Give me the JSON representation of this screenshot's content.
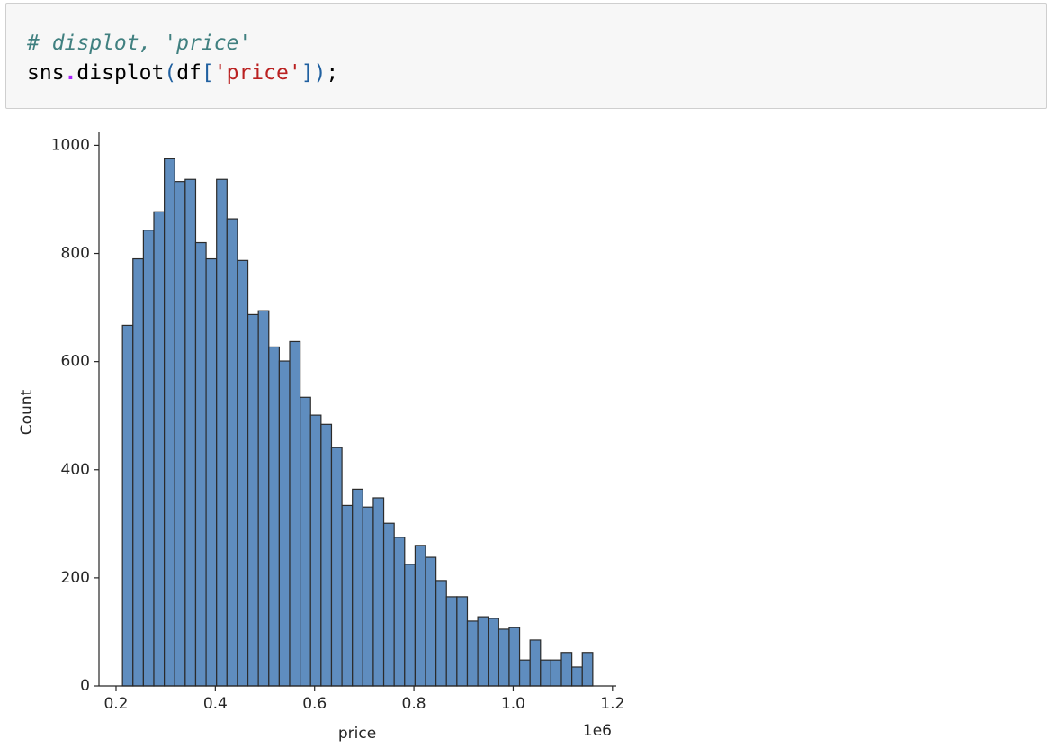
{
  "code_cell": {
    "lines": [
      [
        "# displot, 'price'"
      ],
      [
        "sns",
        ".",
        "displot",
        "(",
        "df",
        "[",
        "'price'",
        "]",
        ")",
        ";"
      ]
    ]
  },
  "chart_data": {
    "type": "histogram",
    "xlabel": "price",
    "ylabel": "Count",
    "x_offset_label": "1e6",
    "color": "#5f8dbf",
    "edgecolor": "#2b2b2b",
    "bins": [
      213000,
      234050,
      255100,
      276150,
      297200,
      318250,
      339300,
      360350,
      381400,
      402450,
      423500,
      444550,
      465600,
      486650,
      507700,
      528750,
      549800,
      570850,
      591900,
      612950,
      634000,
      655050,
      676100,
      697150,
      718200,
      739250,
      760300,
      781350,
      802400,
      823450,
      844500,
      865550,
      886600,
      907650,
      928700,
      949750,
      970800,
      991850,
      1012900,
      1033950,
      1055000,
      1076050,
      1097100,
      1118150,
      1139200,
      1160250
    ],
    "values": [
      667,
      790,
      843,
      877,
      975,
      933,
      937,
      820,
      790,
      937,
      864,
      787,
      687,
      694,
      627,
      601,
      637,
      534,
      501,
      484,
      441,
      334,
      364,
      331,
      348,
      301,
      275,
      225,
      260,
      238,
      195,
      165,
      165,
      120,
      128,
      125,
      105,
      108,
      48,
      85,
      48,
      48,
      62,
      35,
      62
    ],
    "xlim": [
      165600,
      1207600
    ],
    "ylim": [
      0,
      1024
    ],
    "xticks": [
      {
        "value": 200000,
        "label": "0.2"
      },
      {
        "value": 400000,
        "label": "0.4"
      },
      {
        "value": 600000,
        "label": "0.6"
      },
      {
        "value": 800000,
        "label": "0.8"
      },
      {
        "value": 1000000,
        "label": "1.0"
      },
      {
        "value": 1200000,
        "label": "1.2"
      }
    ],
    "yticks": [
      0,
      200,
      400,
      600,
      800,
      1000
    ]
  }
}
